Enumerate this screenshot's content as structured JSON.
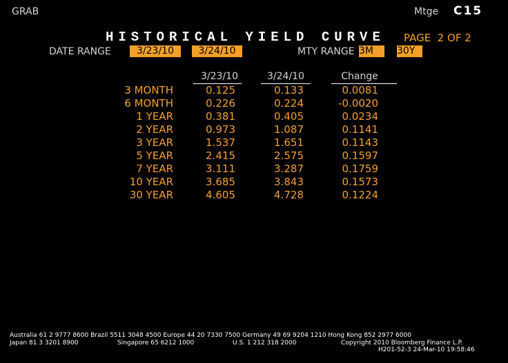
{
  "header": {
    "left": "GRAB",
    "mode": "Mtge",
    "code": "C15"
  },
  "title": "HISTORICAL YIELD CURVE",
  "page": "PAGE  2 OF 2",
  "controls": {
    "date_range_label": "DATE RANGE",
    "date_from": "3/23/10",
    "date_to": "3/24/10",
    "mty_range_label": "MTY RANGE",
    "mty_from": "3M",
    "mty_to": "30Y"
  },
  "table": {
    "columns": [
      "3/23/10",
      "3/24/10",
      "Change"
    ],
    "rows": [
      [
        "3 MONTH",
        "0.125",
        "0.133",
        "0.0081"
      ],
      [
        "6 MONTH",
        "0.226",
        "0.224",
        "-0.0020"
      ],
      [
        "1 YEAR",
        "0.381",
        "0.405",
        "0.0234"
      ],
      [
        "2 YEAR",
        "0.973",
        "1.087",
        "0.1141"
      ],
      [
        "3 YEAR",
        "1.537",
        "1.651",
        "0.1143"
      ],
      [
        "5 YEAR",
        "2.415",
        "2.575",
        "0.1597"
      ],
      [
        "7 YEAR",
        "3.111",
        "3.287",
        "0.1759"
      ],
      [
        "10 YEAR",
        "3.685",
        "3.843",
        "0.1573"
      ],
      [
        "30 YEAR",
        "4.605",
        "4.728",
        "0.1224"
      ]
    ]
  },
  "footer": {
    "line1": "Australia 61 2 9777 8600 Brazil 5511 3048 4500 Europe 44 20 7330 7500 Germany 49 69 9204 1210 Hong Kong 852 2977 6000",
    "japan": "Japan 81 3 3201 8900",
    "singapore": "Singapore 65 6212 1000",
    "us": "U.S. 1 212 318 2000",
    "copyright": "Copyright 2010 Bloomberg Finance L.P.",
    "stamp": "H201-52-3 24-Mar-10 19:58:46"
  }
}
